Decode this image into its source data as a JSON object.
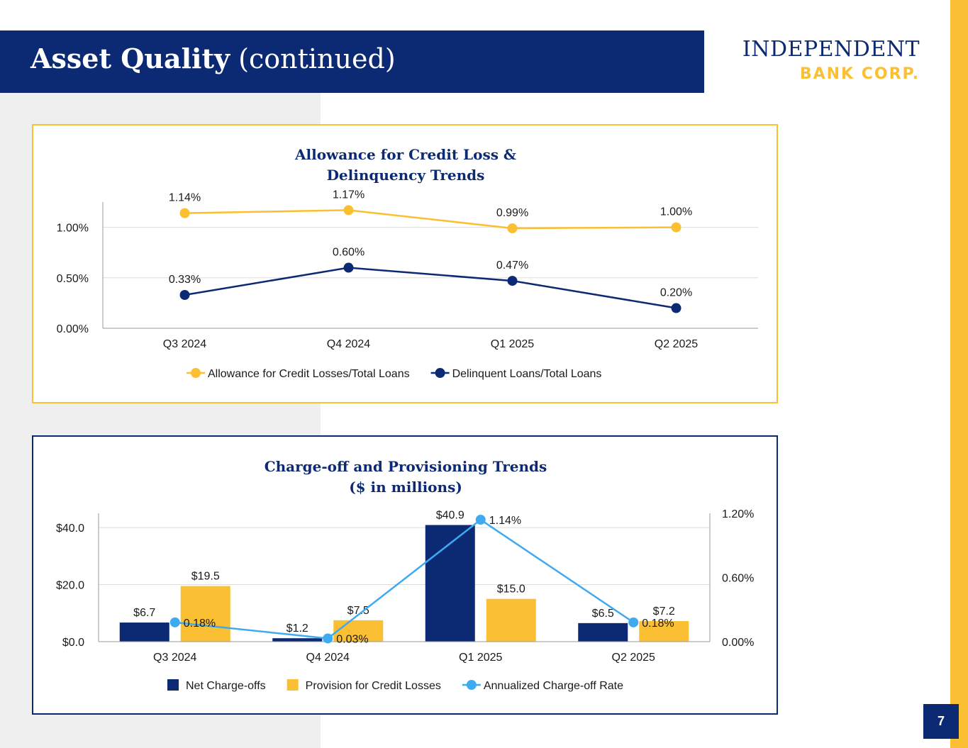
{
  "header": {
    "title_bold": "Asset Quality",
    "title_rest": " (continued)"
  },
  "logo": {
    "line1": "INDEPENDENT",
    "line2": "BANK CORP."
  },
  "colors": {
    "navy": "#0c2a73",
    "gold": "#fbbf33",
    "light_blue": "#3eaaf0",
    "gray": "#efefef"
  },
  "page_number": "7",
  "chart_data": [
    {
      "type": "line",
      "title_lines": [
        "Allowance for Credit Loss &",
        "Delinquency Trends"
      ],
      "categories": [
        "Q3 2024",
        "Q4 2024",
        "Q1 2025",
        "Q2 2025"
      ],
      "ylim": [
        0,
        1.25
      ],
      "yticks": [
        {
          "value": 0,
          "label": "0.00%"
        },
        {
          "value": 0.5,
          "label": "0.50%"
        },
        {
          "value": 1.0,
          "label": "1.00%"
        }
      ],
      "series": [
        {
          "name": "Allowance for Credit Losses/Total Loans",
          "color": "#fbbf33",
          "values": [
            1.14,
            1.17,
            0.99,
            1.0
          ],
          "labels": [
            "1.14%",
            "1.17%",
            "0.99%",
            "1.00%"
          ]
        },
        {
          "name": "Delinquent Loans/Total Loans",
          "color": "#0c2a73",
          "values": [
            0.33,
            0.6,
            0.47,
            0.2
          ],
          "labels": [
            "0.33%",
            "0.60%",
            "0.47%",
            "0.20%"
          ]
        }
      ],
      "legend": "bottom"
    },
    {
      "type": "bar",
      "title_lines": [
        "Charge-off and Provisioning Trends",
        "($ in millions)"
      ],
      "categories": [
        "Q3 2024",
        "Q4 2024",
        "Q1 2025",
        "Q2 2025"
      ],
      "ylim": [
        0,
        45
      ],
      "yticks": [
        {
          "value": 0,
          "label": "$0.0"
        },
        {
          "value": 20,
          "label": "$20.0"
        },
        {
          "value": 40,
          "label": "$40.0"
        }
      ],
      "y2lim": [
        0,
        1.2
      ],
      "y2ticks": [
        {
          "value": 0,
          "label": "0.00%"
        },
        {
          "value": 0.6,
          "label": "0.60%"
        },
        {
          "value": 1.2,
          "label": "1.20%"
        }
      ],
      "series": [
        {
          "name": "Net Charge-offs",
          "kind": "bar",
          "color": "#0c2a73",
          "values": [
            6.7,
            1.2,
            40.9,
            6.5
          ],
          "labels": [
            "$6.7",
            "$1.2",
            "$40.9",
            "$6.5"
          ]
        },
        {
          "name": "Provision for Credit Losses",
          "kind": "bar",
          "color": "#fbbf33",
          "values": [
            19.5,
            7.5,
            15.0,
            7.2
          ],
          "labels": [
            "$19.5",
            "$7.5",
            "$15.0",
            "$7.2"
          ]
        },
        {
          "name": "Annualized Charge-off Rate",
          "kind": "line",
          "axis": "secondary",
          "color": "#3eaaf0",
          "values": [
            0.18,
            0.03,
            1.14,
            0.18
          ],
          "labels": [
            "0.18%",
            "0.03%",
            "1.14%",
            "0.18%"
          ]
        }
      ],
      "legend": "bottom"
    }
  ]
}
